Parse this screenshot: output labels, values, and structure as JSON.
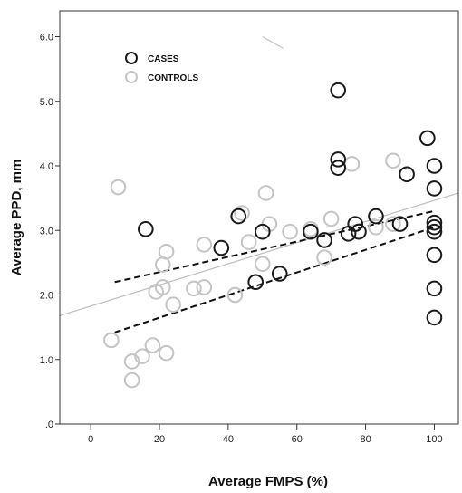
{
  "chart_data": {
    "type": "scatter",
    "xlabel": "Average FMPS (%)",
    "ylabel": "Average PPD, mm",
    "xlim": [
      -9,
      107
    ],
    "ylim": [
      0,
      6.4
    ],
    "x_ticks": [
      0,
      20,
      40,
      60,
      80,
      100
    ],
    "x_tick_labels": [
      "0",
      "20",
      "40",
      "60",
      "80",
      "100"
    ],
    "y_ticks": [
      0,
      1,
      2,
      3,
      4,
      5,
      6
    ],
    "y_tick_labels": [
      ".0",
      "1.0",
      "2.0",
      "3.0",
      "4.0",
      "5.0",
      "6.0"
    ],
    "legend": {
      "placement": "top-left",
      "entries": [
        "CASES",
        "CONTROLS"
      ]
    },
    "grid": false,
    "colors": {
      "cases": "#1a1a1a",
      "controls": "#c4c4c4",
      "fit_dashed": "#111111",
      "fit_solid": "#bdbdbd"
    },
    "series": [
      {
        "name": "CASES",
        "points": [
          [
            16,
            3.02
          ],
          [
            38,
            2.73
          ],
          [
            43,
            3.22
          ],
          [
            48,
            2.2
          ],
          [
            50,
            2.98
          ],
          [
            55,
            2.33
          ],
          [
            64,
            2.98
          ],
          [
            68,
            2.85
          ],
          [
            72,
            5.17
          ],
          [
            72,
            4.1
          ],
          [
            72,
            3.97
          ],
          [
            75,
            2.95
          ],
          [
            77,
            3.1
          ],
          [
            78,
            2.98
          ],
          [
            83,
            3.22
          ],
          [
            90,
            3.1
          ],
          [
            92,
            3.87
          ],
          [
            98,
            4.43
          ],
          [
            100,
            4.0
          ],
          [
            100,
            3.65
          ],
          [
            100,
            3.12
          ],
          [
            100,
            3.05
          ],
          [
            100,
            2.98
          ],
          [
            100,
            2.62
          ],
          [
            100,
            2.1
          ],
          [
            100,
            1.65
          ]
        ]
      },
      {
        "name": "CONTROLS",
        "points": [
          [
            6,
            1.3
          ],
          [
            8,
            3.67
          ],
          [
            12,
            0.68
          ],
          [
            12,
            0.97
          ],
          [
            15,
            1.05
          ],
          [
            18,
            1.22
          ],
          [
            19,
            2.05
          ],
          [
            21,
            2.12
          ],
          [
            21,
            2.47
          ],
          [
            22,
            2.67
          ],
          [
            22,
            1.1
          ],
          [
            24,
            1.85
          ],
          [
            30,
            2.1
          ],
          [
            33,
            2.12
          ],
          [
            33,
            2.78
          ],
          [
            42,
            2.0
          ],
          [
            44,
            3.27
          ],
          [
            46,
            2.82
          ],
          [
            50,
            2.48
          ],
          [
            51,
            3.58
          ],
          [
            52,
            3.1
          ],
          [
            58,
            2.98
          ],
          [
            64,
            3.02
          ],
          [
            68,
            2.58
          ],
          [
            70,
            3.18
          ],
          [
            76,
            4.03
          ],
          [
            83,
            3.05
          ],
          [
            88,
            4.08
          ],
          [
            88,
            3.1
          ]
        ]
      }
    ],
    "fit_lines": [
      {
        "style": "solid",
        "x": [
          -9,
          107
        ],
        "y": [
          1.68,
          3.58
        ]
      },
      {
        "style": "dashed",
        "x": [
          7,
          100
        ],
        "y": [
          2.2,
          3.3
        ]
      },
      {
        "style": "dashed",
        "x": [
          7,
          100
        ],
        "y": [
          1.42,
          3.05
        ]
      }
    ],
    "extra_segments": [
      {
        "x": [
          50,
          56
        ],
        "y": [
          6.0,
          5.82
        ]
      }
    ]
  }
}
